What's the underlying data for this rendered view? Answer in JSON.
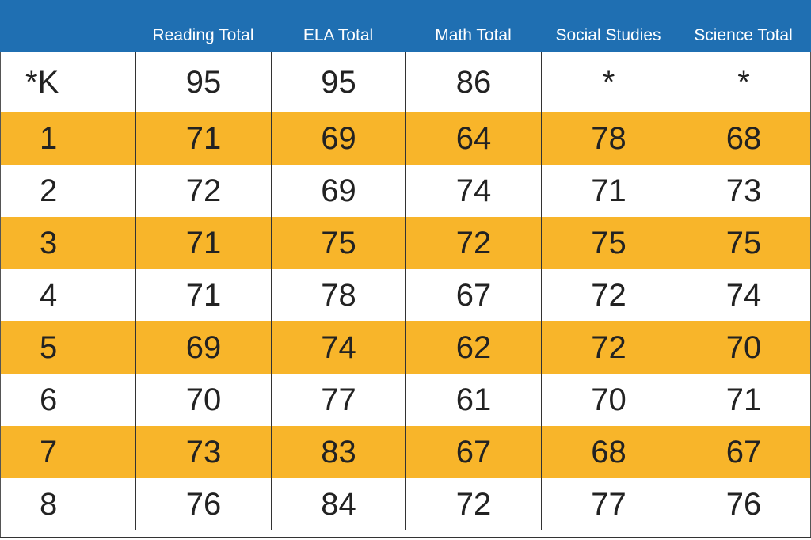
{
  "chart_data": {
    "type": "table",
    "columns": [
      "",
      "Reading Total",
      "ELA Total",
      "Math Total",
      "Social Studies",
      "Science Total"
    ],
    "rows": [
      [
        "*K",
        "95",
        "95",
        "86",
        "*",
        "*"
      ],
      [
        "1",
        "71",
        "69",
        "64",
        "78",
        "68"
      ],
      [
        "2",
        "72",
        "69",
        "74",
        "71",
        "73"
      ],
      [
        "3",
        "71",
        "75",
        "72",
        "75",
        "75"
      ],
      [
        "4",
        "71",
        "78",
        "67",
        "72",
        "74"
      ],
      [
        "5",
        "69",
        "74",
        "62",
        "72",
        "70"
      ],
      [
        "6",
        "70",
        "77",
        "61",
        "70",
        "71"
      ],
      [
        "7",
        "73",
        "83",
        "67",
        "68",
        "67"
      ],
      [
        "8",
        "76",
        "84",
        "72",
        "77",
        "76"
      ]
    ]
  },
  "colors": {
    "header_bg": "#1f6fb2",
    "header_text": "#ffffff",
    "stripe": "#f8b52a",
    "row_bg": "#ffffff",
    "cell_text": "#222222",
    "grid_line": "#333333"
  }
}
